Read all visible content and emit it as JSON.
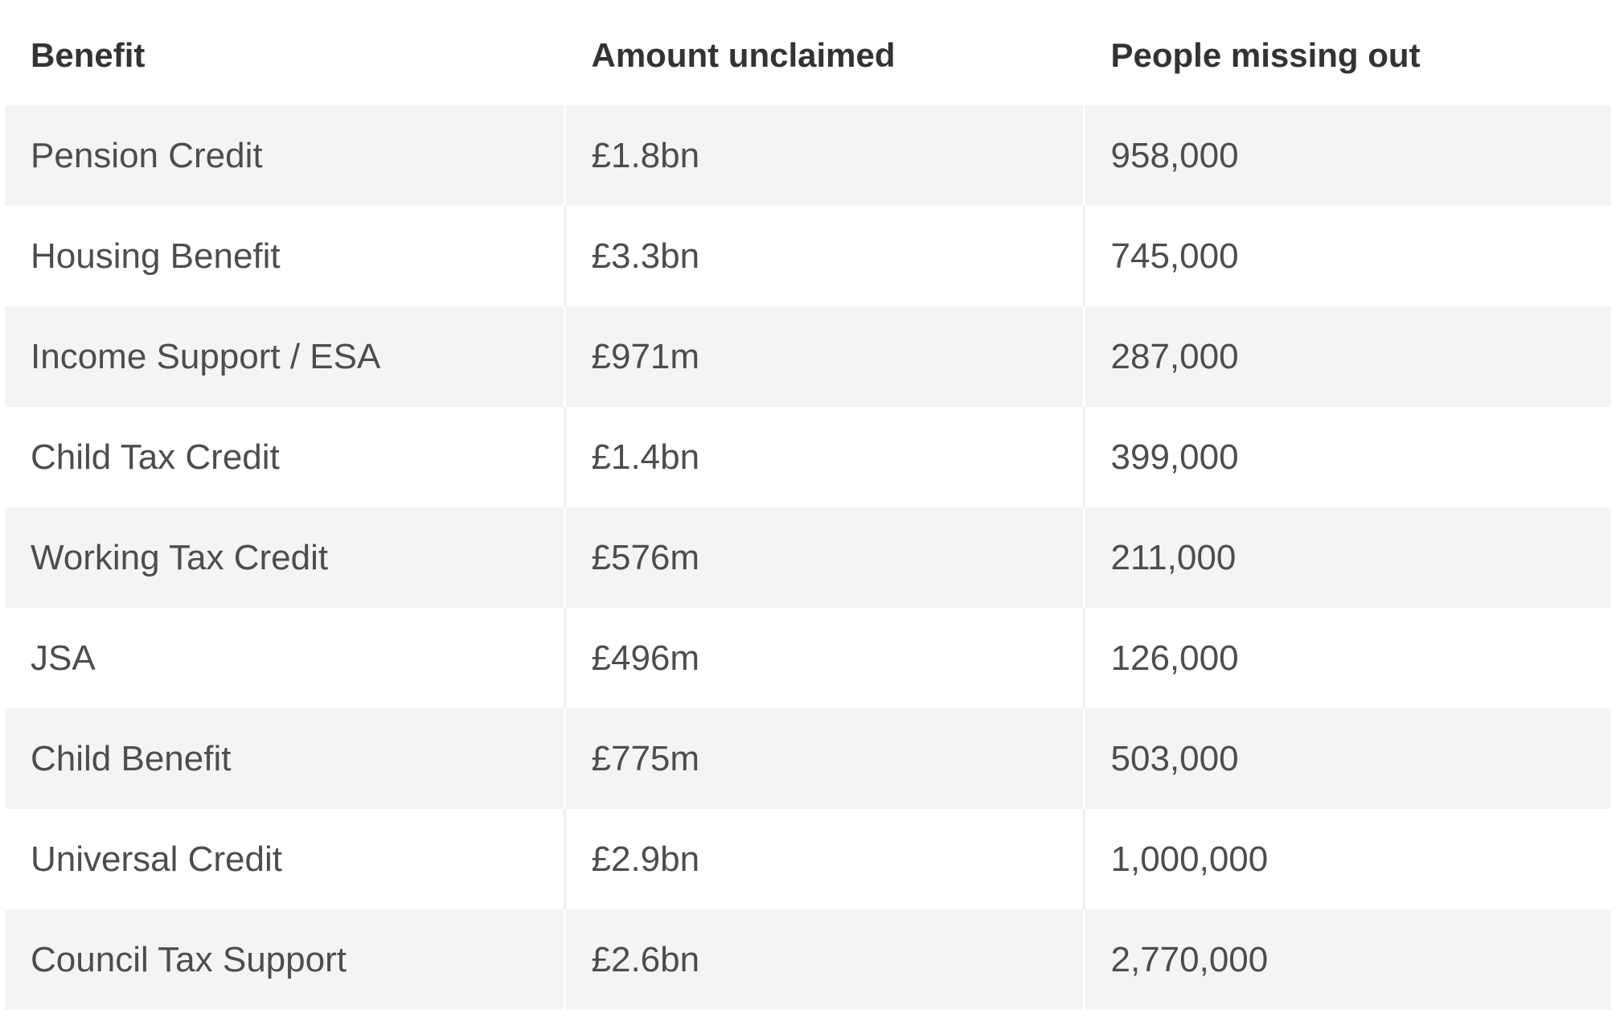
{
  "table": {
    "headers": [
      "Benefit",
      "Amount unclaimed",
      "People missing out"
    ],
    "rows": [
      [
        "Pension Credit",
        "£1.8bn",
        "958,000"
      ],
      [
        "Housing Benefit",
        "£3.3bn",
        "745,000"
      ],
      [
        "Income Support / ESA",
        "£971m",
        "287,000"
      ],
      [
        "Child Tax Credit",
        "£1.4bn",
        "399,000"
      ],
      [
        "Working Tax Credit",
        "£576m",
        "211,000"
      ],
      [
        "JSA",
        "£496m",
        "126,000"
      ],
      [
        "Child Benefit",
        "£775m",
        "503,000"
      ],
      [
        "Universal Credit",
        "£2.9bn",
        "1,000,000"
      ],
      [
        "Council Tax Support",
        "£2.6bn",
        "2,770,000"
      ]
    ]
  }
}
